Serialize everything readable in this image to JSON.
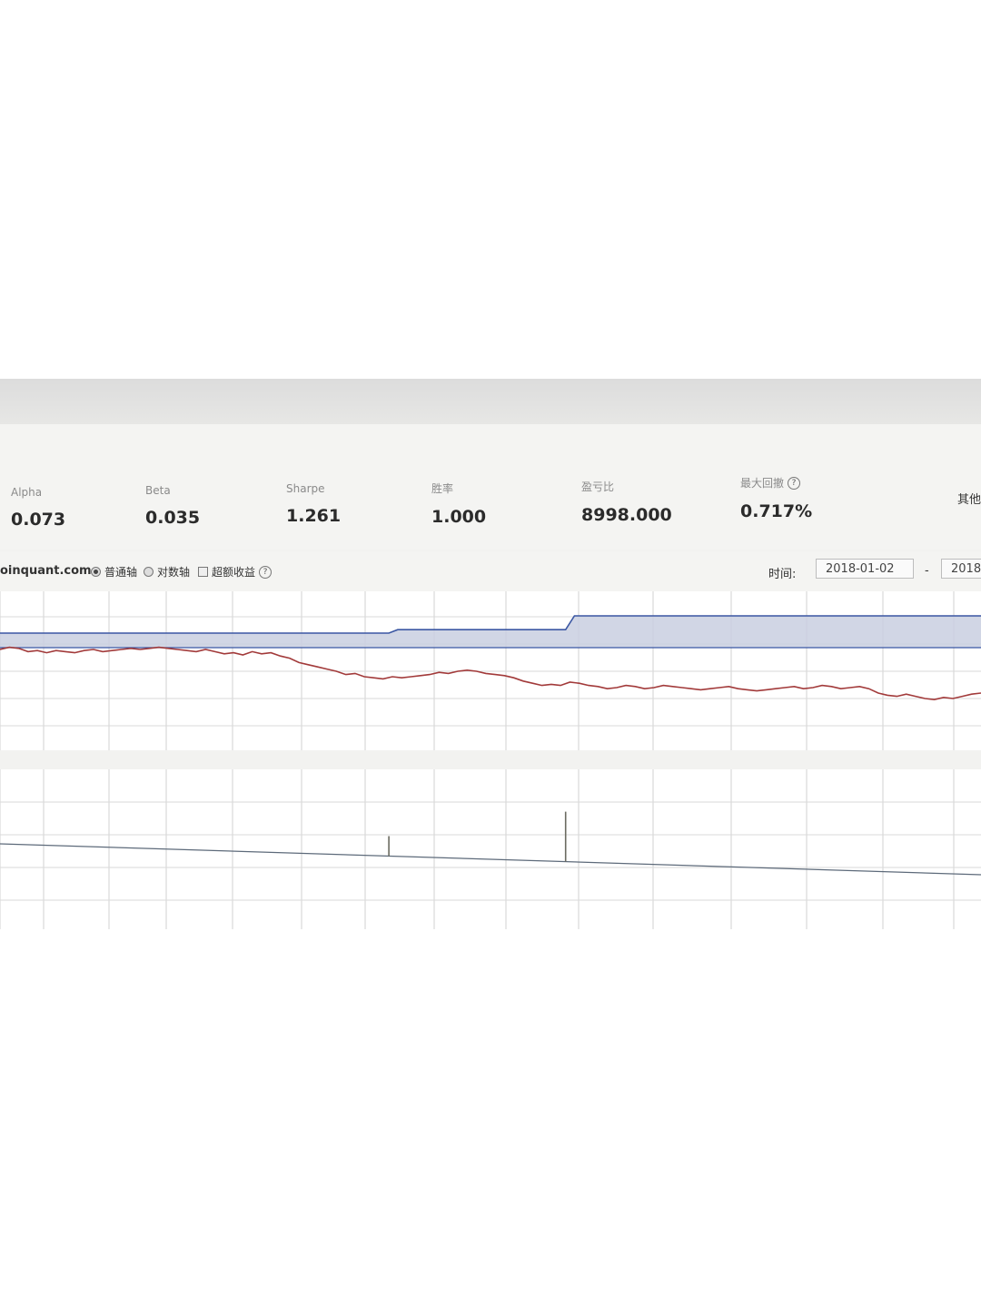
{
  "metrics": [
    {
      "id": "alpha",
      "label": "Alpha",
      "value": "0.073"
    },
    {
      "id": "beta",
      "label": "Beta",
      "value": "0.035"
    },
    {
      "id": "sharpe",
      "label": "Sharpe",
      "value": "1.261"
    },
    {
      "id": "win-rate",
      "label": "胜率",
      "value": "1.000"
    },
    {
      "id": "profit-loss-ratio",
      "label": "盈亏比",
      "value": "8998.000"
    },
    {
      "id": "max-drawdown",
      "label": "最大回撤",
      "value": "0.717%",
      "help": "?"
    }
  ],
  "other_tab": "其他",
  "toolbar": {
    "site": "oinquant.com",
    "axis_normal": "普通轴",
    "axis_log": "对数轴",
    "excess_return": "超额收益",
    "help": "?",
    "time_label": "时间:",
    "start_date": "2018-01-02",
    "date_separator": "-",
    "end_date": "2018"
  },
  "chart_data": {
    "type": "line",
    "series": [
      {
        "id": "blue-line",
        "color": "#3b57a3",
        "fill": "#c9cfe0",
        "values": [
          0,
          0,
          0,
          0,
          0,
          0,
          0,
          0,
          0,
          0,
          0,
          0,
          0,
          0,
          0,
          0,
          0,
          0,
          0,
          0,
          0,
          0,
          0,
          0,
          0,
          0,
          0,
          0,
          0,
          0,
          0,
          0,
          0,
          0,
          0,
          0,
          0,
          0,
          0,
          0,
          0,
          0,
          0,
          0,
          0,
          0.1,
          0.1,
          0.1,
          0.1,
          0.1,
          0.1,
          0.1,
          0.1,
          0.1,
          0.1,
          0.1,
          0.1,
          0.1,
          0.1,
          0.1,
          0.1,
          0.1,
          0.1,
          0.1,
          0.1,
          0.5,
          0.5,
          0.5,
          0.5,
          0.5,
          0.5,
          0.5,
          0.5,
          0.5,
          0.5,
          0.5,
          0.5,
          0.5,
          0.5,
          0.5,
          0.5,
          0.5,
          0.5,
          0.5,
          0.5,
          0.5,
          0.5,
          0.5,
          0.5,
          0.5,
          0.5,
          0.5,
          0.5,
          0.5,
          0.5,
          0.5,
          0.5,
          0.5,
          0.5,
          0.5,
          0.5,
          0.5,
          0.5,
          0.5,
          0.5,
          0.5,
          0.5,
          0.5,
          0.5,
          0.5,
          0.5,
          0.5
        ]
      },
      {
        "id": "red-line",
        "color": "#a23a3a",
        "values": [
          0.0,
          0.2,
          0.1,
          -0.2,
          -0.1,
          -0.3,
          -0.1,
          -0.2,
          -0.3,
          -0.1,
          0.0,
          -0.2,
          -0.1,
          0.0,
          0.1,
          0.0,
          0.1,
          0.2,
          0.1,
          0.0,
          -0.1,
          -0.2,
          0.0,
          -0.2,
          -0.4,
          -0.3,
          -0.5,
          -0.2,
          -0.4,
          -0.3,
          -0.6,
          -0.8,
          -1.2,
          -1.4,
          -1.6,
          -1.8,
          -2.0,
          -2.3,
          -2.2,
          -2.5,
          -2.6,
          -2.7,
          -2.5,
          -2.6,
          -2.5,
          -2.4,
          -2.3,
          -2.1,
          -2.2,
          -2.0,
          -1.9,
          -2.0,
          -2.2,
          -2.3,
          -2.4,
          -2.6,
          -2.9,
          -3.1,
          -3.3,
          -3.2,
          -3.3,
          -3.0,
          -3.1,
          -3.3,
          -3.4,
          -3.6,
          -3.5,
          -3.3,
          -3.4,
          -3.6,
          -3.5,
          -3.3,
          -3.4,
          -3.5,
          -3.6,
          -3.7,
          -3.6,
          -3.5,
          -3.4,
          -3.6,
          -3.7,
          -3.8,
          -3.7,
          -3.6,
          -3.5,
          -3.4,
          -3.6,
          -3.5,
          -3.3,
          -3.4,
          -3.6,
          -3.5,
          -3.4,
          -3.6,
          -4.0,
          -4.2,
          -4.3,
          -4.1,
          -4.3,
          -4.5,
          -4.6,
          -4.4,
          -4.5,
          -4.3,
          -4.1,
          -4.0
        ]
      }
    ],
    "volume_bars": [
      {
        "index": 44,
        "value": 0.4
      },
      {
        "index": 64,
        "value": 1.0
      }
    ],
    "grid": true
  }
}
